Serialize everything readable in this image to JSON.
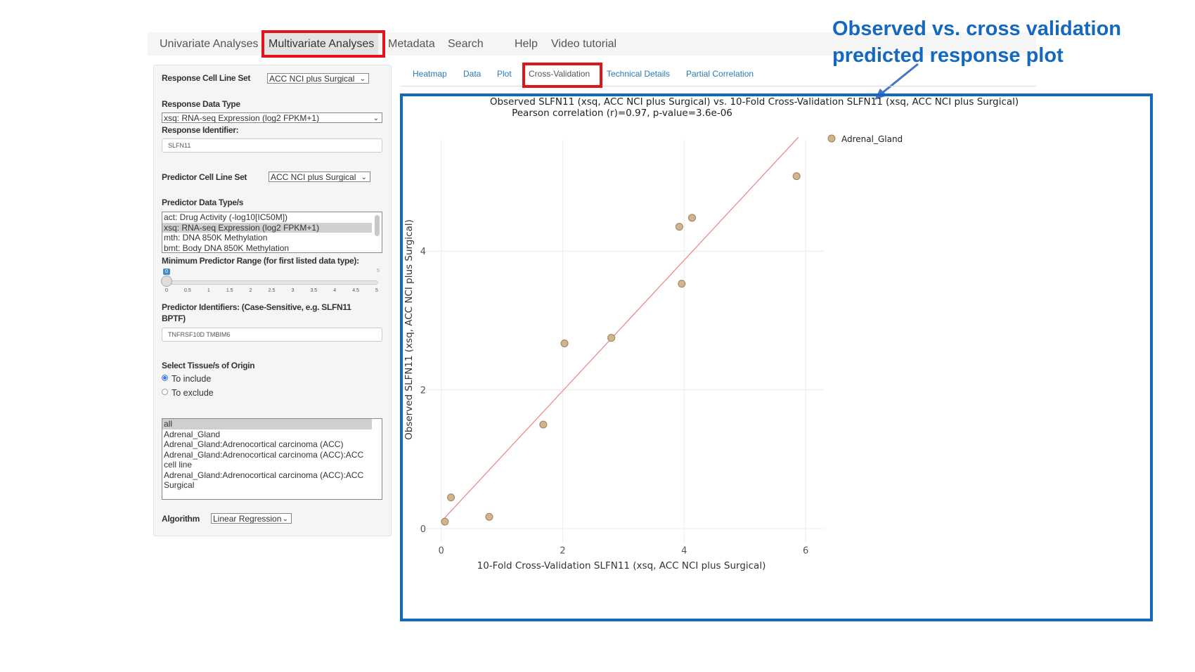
{
  "nav": {
    "items": [
      "Univariate Analyses",
      "Multivariate Analyses",
      "Metadata",
      "Search",
      "Help",
      "Video tutorial"
    ],
    "active": "Multivariate Analyses"
  },
  "subtabs": {
    "items": [
      "Heatmap",
      "Data",
      "Plot",
      "Cross-Validation",
      "Technical Details",
      "Partial Correlation"
    ],
    "active": "Cross-Validation"
  },
  "annotation": {
    "line1": "Observed vs. cross validation",
    "line2": "predicted response plot",
    "color": "#1468c0"
  },
  "panel": {
    "response_cell_line_set_label": "Response Cell Line Set",
    "response_cell_line_set_value": "ACC NCI plus Surgical",
    "response_data_type_label": "Response Data Type",
    "response_data_type_value": "xsq: RNA-seq Expression (log2 FPKM+1)",
    "response_identifier_label": "Response Identifier:",
    "response_identifier_value": "SLFN11",
    "predictor_cell_line_set_label": "Predictor Cell Line Set",
    "predictor_cell_line_set_value": "ACC NCI plus Surgical",
    "predictor_data_types_label": "Predictor Data Type/s",
    "predictor_data_types": [
      "act: Drug Activity (-log10[IC50M])",
      "xsq: RNA-seq Expression (log2 FPKM+1)",
      "mth: DNA 850K Methylation",
      "bmt: Body DNA 850K Methylation"
    ],
    "predictor_data_types_selected": 1,
    "min_range_label": "Minimum Predictor Range (for first listed data type):",
    "slider": {
      "value": "0",
      "max_label": "5",
      "value_num": 0,
      "min": 0,
      "max": 5,
      "ticks": [
        "0",
        "0.5",
        "1",
        "1.5",
        "2",
        "2.5",
        "3",
        "3.5",
        "4",
        "4.5",
        "5"
      ]
    },
    "predictor_identifiers_label_1": "Predictor Identifiers: (Case-Sensitive, e.g. SLFN11",
    "predictor_identifiers_label_2": "BPTF)",
    "predictor_identifiers_value": "TNFRSF10D TMBIM6",
    "tissue_label": "Select Tissue/s of Origin",
    "radio_include": "To include",
    "radio_exclude": "To exclude",
    "tissues": [
      "all",
      "Adrenal_Gland",
      "Adrenal_Gland:Adrenocortical carcinoma (ACC)",
      "Adrenal_Gland:Adrenocortical carcinoma (ACC):ACC",
      "cell line",
      "Adrenal_Gland:Adrenocortical carcinoma (ACC):ACC",
      "Surgical"
    ],
    "algorithm_label": "Algorithm",
    "algorithm_value": "Linear Regression"
  },
  "chart_data": {
    "type": "scatter",
    "title": "Observed SLFN11 (xsq, ACC NCI plus Surgical) vs. 10-Fold Cross-Validation SLFN11 (xsq, ACC NCI plus Surgical)",
    "subtitle": "Pearson correlation (r)=0.97, p-value=3.6e-06",
    "xlabel": "10-Fold Cross-Validation SLFN11 (xsq, ACC NCI plus Surgical)",
    "ylabel": "Observed SLFN11 (xsq, ACC NCI plus Surgical)",
    "xlim": [
      -0.35,
      6.3
    ],
    "ylim": [
      -0.2,
      5.6
    ],
    "xticks": [
      "0",
      "2",
      "4",
      "6"
    ],
    "yticks": [
      "0",
      "2",
      "4"
    ],
    "grid": true,
    "legend_placement": "top-right",
    "series": [
      {
        "name": "Adrenal_Gland",
        "color": "#d2b48c",
        "x": [
          0.06,
          0.16,
          0.79,
          1.68,
          2.03,
          2.8,
          3.96,
          3.92,
          4.13,
          5.85
        ],
        "y": [
          0.1,
          0.45,
          0.17,
          1.5,
          2.67,
          2.75,
          3.53,
          4.35,
          4.48,
          5.08
        ]
      }
    ],
    "fit_line": {
      "x": [
        0.03,
        5.88
      ],
      "y": [
        0.13,
        5.64
      ],
      "color": "#f08080"
    }
  }
}
